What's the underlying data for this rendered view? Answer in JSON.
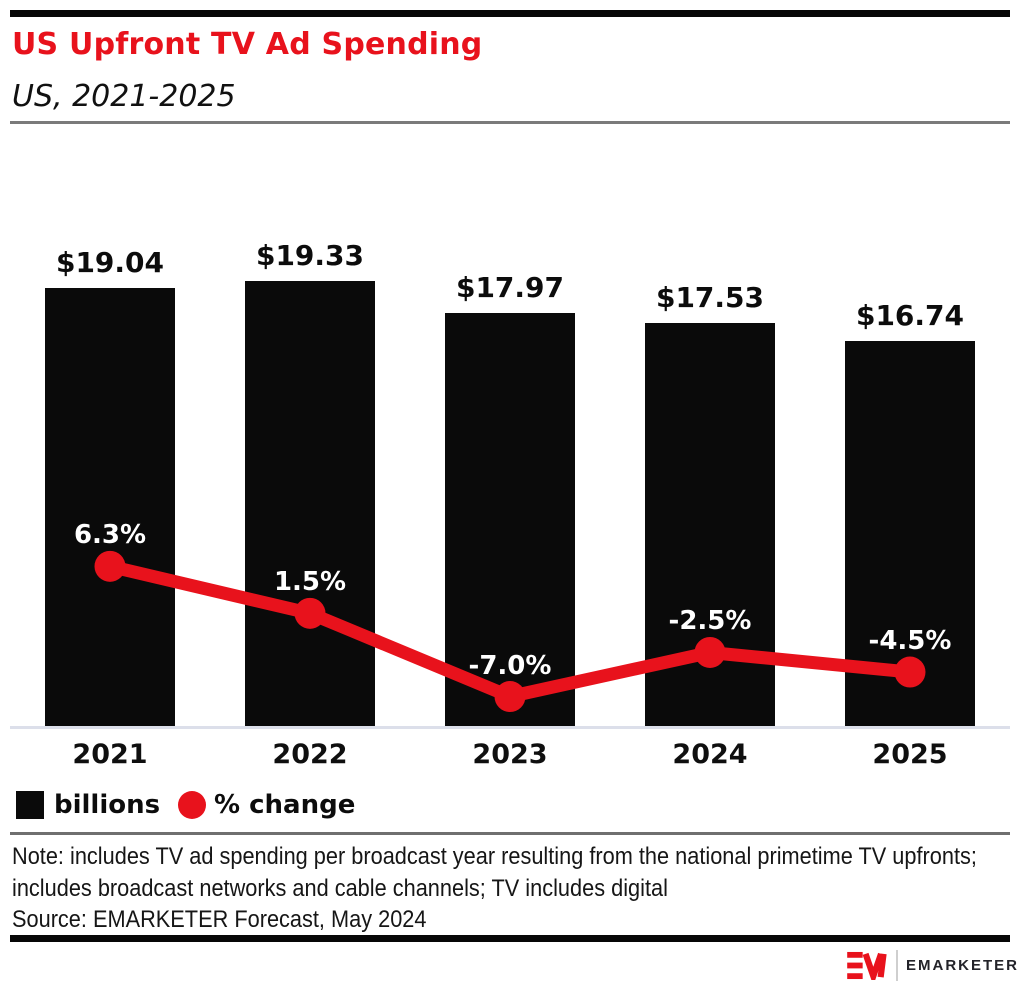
{
  "chart_data": {
    "type": "bar+line",
    "title": "US Upfront TV Ad Spending",
    "subtitle": "US, 2021-2025",
    "categories": [
      "2021",
      "2022",
      "2023",
      "2024",
      "2025"
    ],
    "series": [
      {
        "name": "billions",
        "type": "bar",
        "values": [
          19.04,
          19.33,
          17.97,
          17.53,
          16.74
        ],
        "labels": [
          "$19.04",
          "$19.33",
          "$17.97",
          "$17.53",
          "$16.74"
        ],
        "unit": "billions of US dollars",
        "color": "#0a0a0a"
      },
      {
        "name": "% change",
        "type": "line",
        "values": [
          6.3,
          1.5,
          -7.0,
          -2.5,
          -4.5
        ],
        "labels": [
          "6.3%",
          "1.5%",
          "-7.0%",
          "-2.5%",
          "-4.5%"
        ],
        "unit": "percent change",
        "color": "#e8121c"
      }
    ],
    "legend": [
      {
        "label": "billions",
        "swatch": "square",
        "color": "#0a0a0a"
      },
      {
        "label": "% change",
        "swatch": "circle",
        "color": "#e8121c"
      }
    ],
    "legend_position": "bottom-left",
    "grid": false,
    "y_axis_visible": false,
    "value_labels": true,
    "bar_ylim": [
      0,
      26
    ],
    "line_ylim": [
      -11,
      13
    ]
  },
  "note": "Note: includes TV ad spending per broadcast year resulting from the national primetime TV upfronts; includes broadcast networks and cable channels; TV includes digital",
  "source": "Source: EMARKETER Forecast, May 2024",
  "footer": {
    "brand": "EMARKETER"
  },
  "colors": {
    "brand_red": "#e8121c",
    "bar_black": "#0a0a0a",
    "axis_line": "#dcdfea",
    "divider_gray": "#7a7a7a"
  }
}
